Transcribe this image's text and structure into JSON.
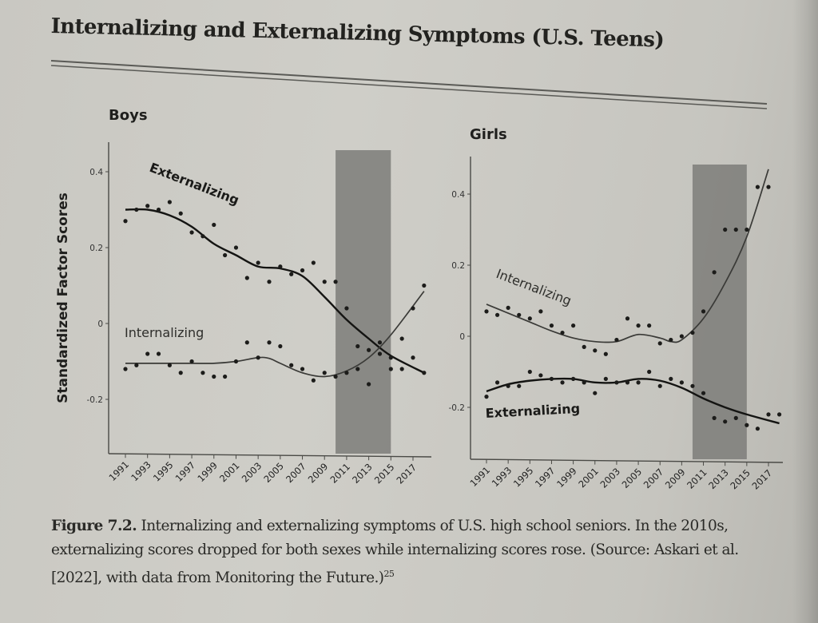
{
  "page": {
    "title": "Internalizing and Externalizing Symptoms (U.S. Teens)",
    "caption": {
      "figure_label": "Figure 7.2.",
      "text": "Internalizing and externalizing symptoms of U.S. high school seniors. In the 2010s, externalizing scores dropped for both sexes while internalizing scores rose. (Source: Askari et al. [2022], with data from Monitoring the Future.)",
      "footnote": "25"
    }
  },
  "colors": {
    "ink": "#1f1f1d",
    "shade": "#7d7d79",
    "internalizing_line": "#3a3a37",
    "externalizing_line": "#141412"
  },
  "chart_data": [
    {
      "type": "scatter",
      "title": "Boys",
      "ylabel": "Standardized Factor Scores",
      "xlabel": "",
      "ylim": [
        -0.34,
        0.48
      ],
      "xlim": [
        1990,
        2018.5
      ],
      "yticks": [
        0.4,
        0.2,
        0,
        -0.2
      ],
      "ytick_labels": [
        "0.4",
        "0.2",
        "0",
        "-0.2"
      ],
      "xticks": [
        1991,
        1993,
        1995,
        1997,
        1999,
        2001,
        2003,
        2005,
        2007,
        2009,
        2011,
        2013,
        2015,
        2017
      ],
      "xtick_labels": [
        "1991",
        "1993",
        "1995",
        "1997",
        "1999",
        "2001",
        "2003",
        "2005",
        "2007",
        "2009",
        "2011",
        "2013",
        "2015",
        "2017"
      ],
      "shaded_region": [
        2010,
        2015
      ],
      "grid": false,
      "x": [
        1991,
        1992,
        1993,
        1994,
        1995,
        1996,
        1997,
        1998,
        1999,
        2000,
        2001,
        2002,
        2003,
        2004,
        2005,
        2006,
        2007,
        2008,
        2009,
        2010,
        2011,
        2012,
        2013,
        2014,
        2015,
        2016,
        2017,
        2018
      ],
      "series": [
        {
          "name": "Externalizing",
          "label_text": "Externalizing",
          "values": [
            0.27,
            0.3,
            0.31,
            0.3,
            0.32,
            0.29,
            0.24,
            0.23,
            0.26,
            0.18,
            0.2,
            0.12,
            0.16,
            0.11,
            0.15,
            0.13,
            0.14,
            0.16,
            0.11,
            0.11,
            0.04,
            -0.06,
            -0.07,
            -0.05,
            -0.12,
            -0.12,
            -0.09,
            -0.13
          ],
          "trend": [
            [
              1991,
              0.3
            ],
            [
              1993,
              0.3
            ],
            [
              1995,
              0.285
            ],
            [
              1997,
              0.255
            ],
            [
              1999,
              0.21
            ],
            [
              2001,
              0.18
            ],
            [
              2003,
              0.15
            ],
            [
              2005,
              0.145
            ],
            [
              2007,
              0.125
            ],
            [
              2009,
              0.07
            ],
            [
              2011,
              0.01
            ],
            [
              2013,
              -0.04
            ],
            [
              2015,
              -0.085
            ],
            [
              2018,
              -0.13
            ]
          ]
        },
        {
          "name": "Internalizing",
          "label_text": "Internalizing",
          "values": [
            -0.12,
            -0.11,
            -0.08,
            -0.08,
            -0.11,
            -0.13,
            -0.1,
            -0.13,
            -0.14,
            -0.14,
            -0.1,
            -0.05,
            -0.09,
            -0.05,
            -0.06,
            -0.11,
            -0.12,
            -0.15,
            -0.13,
            -0.14,
            -0.13,
            -0.12,
            -0.16,
            -0.08,
            -0.09,
            -0.04,
            0.04,
            0.1
          ],
          "trend": [
            [
              1991,
              -0.105
            ],
            [
              1993,
              -0.105
            ],
            [
              1995,
              -0.105
            ],
            [
              1997,
              -0.105
            ],
            [
              1999,
              -0.105
            ],
            [
              2001,
              -0.1
            ],
            [
              2003,
              -0.09
            ],
            [
              2004,
              -0.092
            ],
            [
              2005,
              -0.105
            ],
            [
              2007,
              -0.13
            ],
            [
              2009,
              -0.14
            ],
            [
              2011,
              -0.125
            ],
            [
              2013,
              -0.09
            ],
            [
              2015,
              -0.03
            ],
            [
              2018,
              0.085
            ]
          ]
        }
      ]
    },
    {
      "type": "scatter",
      "title": "Girls",
      "ylabel": "",
      "xlabel": "",
      "ylim": [
        -0.34,
        0.52
      ],
      "xlim": [
        1990,
        2018.5
      ],
      "yticks": [
        0.4,
        0.2,
        0,
        -0.2
      ],
      "ytick_labels": [
        "0.4",
        "0.2",
        "0",
        "-0.2"
      ],
      "xticks": [
        1991,
        1993,
        1995,
        1997,
        1999,
        2001,
        2003,
        2005,
        2007,
        2009,
        2011,
        2013,
        2015,
        2017
      ],
      "xtick_labels": [
        "1991",
        "1993",
        "1995",
        "1997",
        "1999",
        "2001",
        "2003",
        "2005",
        "2007",
        "2009",
        "2011",
        "2013",
        "2015",
        "2017"
      ],
      "shaded_region": [
        2010,
        2015
      ],
      "grid": false,
      "x": [
        1991,
        1992,
        1993,
        1994,
        1995,
        1996,
        1997,
        1998,
        1999,
        2000,
        2001,
        2002,
        2003,
        2004,
        2005,
        2006,
        2007,
        2008,
        2009,
        2010,
        2011,
        2012,
        2013,
        2014,
        2015,
        2016,
        2017,
        2018
      ],
      "series": [
        {
          "name": "Internalizing",
          "label_text": "Internalizing",
          "values": [
            0.07,
            0.06,
            0.08,
            0.06,
            0.05,
            0.07,
            0.03,
            0.01,
            0.03,
            -0.03,
            -0.04,
            -0.05,
            -0.01,
            0.05,
            0.03,
            0.03,
            -0.02,
            -0.01,
            0.0,
            0.01,
            0.07,
            0.18,
            0.3,
            0.3,
            0.3,
            0.42,
            0.42,
            null
          ],
          "trend": [
            [
              1991,
              0.09
            ],
            [
              1993,
              0.065
            ],
            [
              1995,
              0.04
            ],
            [
              1997,
              0.015
            ],
            [
              1999,
              -0.005
            ],
            [
              2001,
              -0.015
            ],
            [
              2003,
              -0.015
            ],
            [
              2005,
              0.005
            ],
            [
              2007,
              -0.005
            ],
            [
              2008,
              -0.015
            ],
            [
              2009,
              -0.01
            ],
            [
              2011,
              0.05
            ],
            [
              2013,
              0.15
            ],
            [
              2015,
              0.28
            ],
            [
              2017,
              0.47
            ]
          ]
        },
        {
          "name": "Externalizing",
          "label_text": "Externalizing",
          "values": [
            -0.17,
            -0.13,
            -0.14,
            -0.14,
            -0.1,
            -0.11,
            -0.12,
            -0.13,
            -0.12,
            -0.13,
            -0.16,
            -0.12,
            -0.13,
            -0.13,
            -0.13,
            -0.1,
            -0.14,
            -0.12,
            -0.13,
            -0.14,
            -0.16,
            -0.23,
            -0.24,
            -0.23,
            -0.25,
            -0.26,
            -0.22,
            -0.22
          ],
          "trend": [
            [
              1991,
              -0.155
            ],
            [
              1993,
              -0.135
            ],
            [
              1995,
              -0.125
            ],
            [
              1997,
              -0.12
            ],
            [
              1999,
              -0.12
            ],
            [
              2001,
              -0.13
            ],
            [
              2003,
              -0.13
            ],
            [
              2005,
              -0.12
            ],
            [
              2007,
              -0.125
            ],
            [
              2009,
              -0.145
            ],
            [
              2011,
              -0.175
            ],
            [
              2013,
              -0.2
            ],
            [
              2015,
              -0.22
            ],
            [
              2018,
              -0.245
            ]
          ]
        }
      ]
    }
  ]
}
